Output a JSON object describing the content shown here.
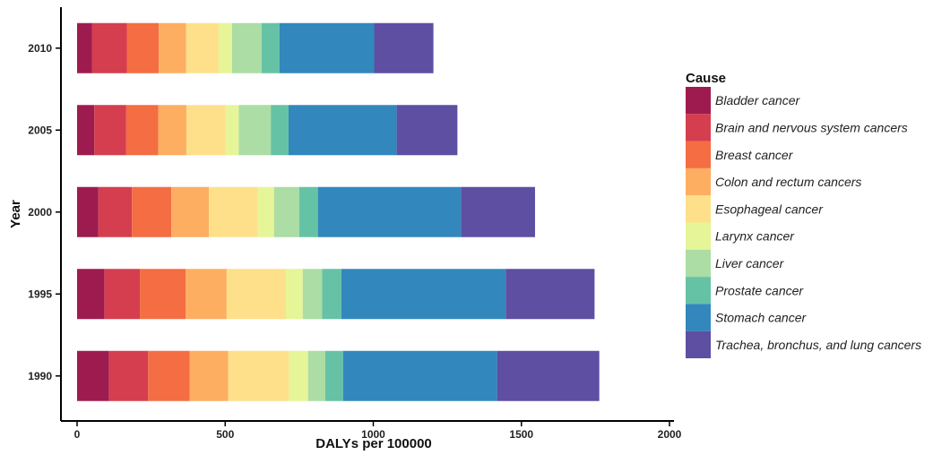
{
  "chart_data": {
    "type": "bar",
    "orientation": "horizontal",
    "stacked": true,
    "title": "",
    "xlabel": "DALYs per 100000",
    "ylabel": "Year",
    "xlim": [
      0,
      2000
    ],
    "xticks": [
      "0",
      "500",
      "1000",
      "1500",
      "2000"
    ],
    "grid": false,
    "legend_title": "Cause",
    "legend_position": "right",
    "categories": [
      "2010",
      "2005",
      "2000",
      "1995",
      "1990"
    ],
    "series": [
      {
        "name": "Bladder cancer",
        "color": "#9e1b4f",
        "values": [
          50,
          58,
          72,
          92,
          108
        ]
      },
      {
        "name": "Brain and nervous system cancers",
        "color": "#d53e4f",
        "values": [
          118,
          108,
          113,
          120,
          132
        ]
      },
      {
        "name": "Breast cancer",
        "color": "#f46d43",
        "values": [
          108,
          108,
          133,
          155,
          140
        ]
      },
      {
        "name": "Colon and rectum cancers",
        "color": "#fdae61",
        "values": [
          92,
          95,
          127,
          138,
          130
        ]
      },
      {
        "name": "Esophageal cancer",
        "color": "#fee08b",
        "values": [
          110,
          132,
          165,
          200,
          205
        ]
      },
      {
        "name": "Larynx cancer",
        "color": "#e6f598",
        "values": [
          45,
          45,
          55,
          57,
          65
        ]
      },
      {
        "name": "Liver cancer",
        "color": "#abdda4",
        "values": [
          100,
          108,
          85,
          65,
          58
        ]
      },
      {
        "name": "Prostate cancer",
        "color": "#66c2a5",
        "values": [
          60,
          60,
          63,
          65,
          60
        ]
      },
      {
        "name": "Stomach cancer",
        "color": "#3288bd",
        "values": [
          320,
          365,
          483,
          555,
          520
        ]
      },
      {
        "name": "Trachea, bronchus, and lung cancers",
        "color": "#5e4fa2",
        "values": [
          200,
          205,
          250,
          300,
          345
        ]
      }
    ]
  }
}
